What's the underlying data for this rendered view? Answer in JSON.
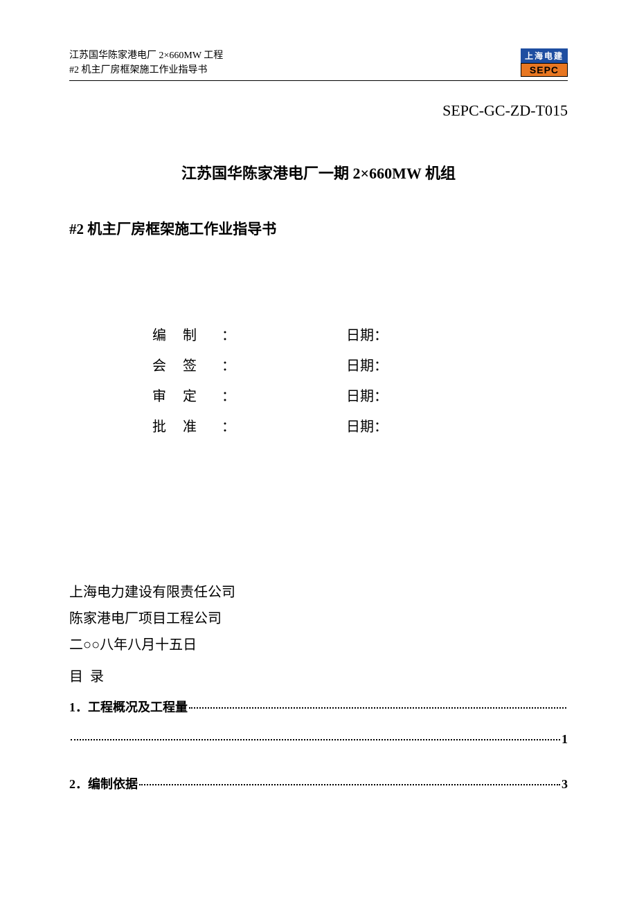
{
  "header": {
    "line1": "江苏国华陈家港电厂 2×660MW 工程",
    "line2": "#2 机主厂房框架施工作业指导书",
    "logo_top": "上海电建",
    "logo_bottom": "SEPC"
  },
  "doc_code": "SEPC-GC-ZD-T015",
  "title": "江苏国华陈家港电厂一期 2×660MW 机组",
  "subtitle": "#2 机主厂房框架施工作业指导书",
  "signoff": {
    "rows": [
      {
        "label": "编制",
        "date_label": "日期："
      },
      {
        "label": "会签",
        "date_label": "日期："
      },
      {
        "label": "审定",
        "date_label": "日期："
      },
      {
        "label": "批准",
        "date_label": "日期："
      }
    ],
    "colon": "："
  },
  "company": {
    "line1": "上海电力建设有限责任公司",
    "line2": "陈家港电厂项目工程公司",
    "date": "二○○八年八月十五日"
  },
  "toc": {
    "heading": "目录",
    "entries": [
      {
        "label": "1．工程概况及工程量",
        "page": "1",
        "wrap": true
      },
      {
        "label": "2．编制依据",
        "page": "3",
        "wrap": false
      }
    ]
  },
  "colors": {
    "text": "#000000",
    "background": "#ffffff",
    "logo_top_bg": "#1e4ea1",
    "logo_top_fg": "#ffffff",
    "logo_bottom_bg": "#e87722",
    "logo_bottom_fg": "#000000",
    "rule": "#000000"
  },
  "typography": {
    "body_font": "SimSun",
    "header_fontsize_pt": 10.5,
    "code_fontsize_pt": 16,
    "title_fontsize_pt": 16,
    "body_fontsize_pt": 15,
    "toc_fontsize_pt": 14
  }
}
